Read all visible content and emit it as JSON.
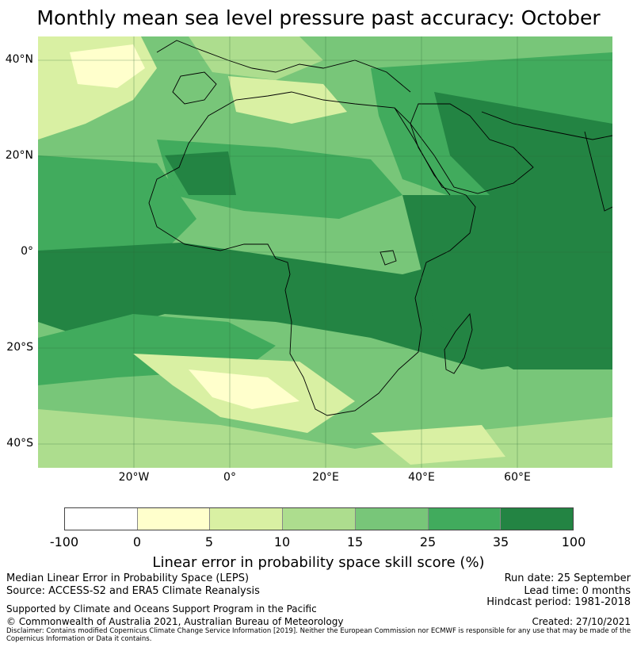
{
  "title": "Monthly mean sea level pressure past accuracy: October",
  "map": {
    "lat_labels": [
      "40°N",
      "20°N",
      "0°",
      "20°S",
      "40°S"
    ],
    "lon_labels": [
      "20°W",
      "0°",
      "20°E",
      "40°E",
      "60°E"
    ],
    "extent": {
      "lon_min": -40,
      "lon_max": 80,
      "lat_min": -45,
      "lat_max": 45
    }
  },
  "colorbar": {
    "colors": [
      "#ffffff",
      "#ffffcc",
      "#d9f0a3",
      "#addd8e",
      "#78c679",
      "#41ab5d",
      "#238443"
    ],
    "ticks": [
      "-100",
      "0",
      "5",
      "10",
      "15",
      "25",
      "35",
      "100"
    ],
    "label": "Linear error in probability space skill score (%)"
  },
  "info": {
    "method": "Median Linear Error in Probability Space (LEPS)",
    "source": "Source: ACCESS-S2 and ERA5 Climate Reanalysis",
    "run_date": "Run date: 25 September",
    "lead_time": "Lead time: 0 months",
    "hindcast": "Hindcast period: 1981-2018",
    "support": "Supported by Climate and Oceans Support Program in the Pacific",
    "copyright": "© Commonwealth of Australia 2021, Australian Bureau of Meteorology",
    "created": "Created: 27/10/2021",
    "disclaimer": "Disclaimer: Contains modified Copernicus Climate Change Service Information [2019]. Neither the European Commission nor ECMWF is responsible for any use that may be made of the Copernicus Information or Data it contains."
  }
}
